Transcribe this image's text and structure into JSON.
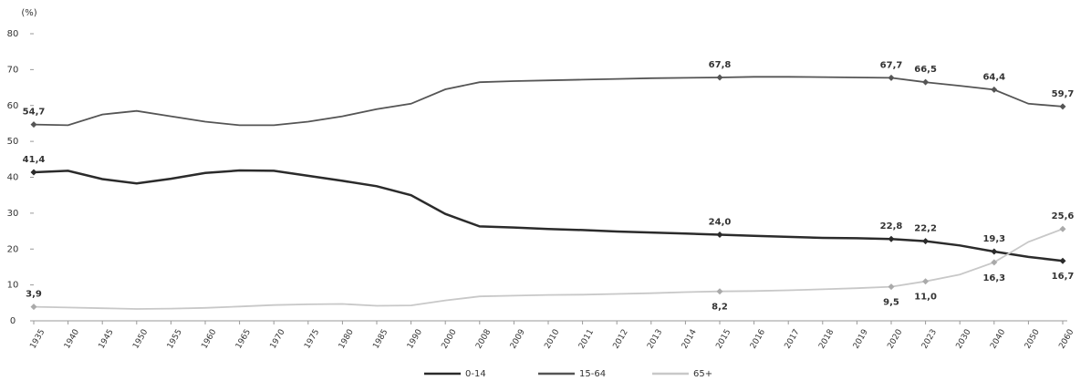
{
  "chart_data": {
    "type": "line",
    "y_axis_label": "(%)",
    "categories": [
      "1935",
      "1940",
      "1945",
      "1950",
      "1955",
      "1960",
      "1965",
      "1970",
      "1975",
      "1980",
      "1985",
      "1990",
      "2000",
      "2008",
      "2009",
      "2010",
      "2011",
      "2012",
      "2013",
      "2014",
      "2015",
      "2016",
      "2017",
      "2018",
      "2019",
      "2020",
      "2023",
      "2030",
      "2040",
      "2050",
      "2060"
    ],
    "series": [
      {
        "name": "0-14",
        "color": "#2b2b2b",
        "values": [
          41.4,
          41.8,
          39.5,
          38.3,
          39.6,
          41.2,
          41.9,
          41.8,
          40.4,
          39.0,
          37.5,
          35.0,
          29.8,
          26.3,
          26.0,
          25.6,
          25.3,
          24.9,
          24.6,
          24.3,
          24.0,
          23.7,
          23.4,
          23.1,
          23.0,
          22.8,
          22.2,
          21.0,
          19.3,
          17.8,
          16.7
        ],
        "value_labels": [
          "41,4",
          null,
          null,
          null,
          null,
          null,
          null,
          null,
          null,
          null,
          null,
          null,
          null,
          null,
          null,
          null,
          null,
          null,
          null,
          null,
          "24,0",
          null,
          null,
          null,
          null,
          "22,8",
          "22,2",
          null,
          "19,3",
          null,
          "16,7"
        ]
      },
      {
        "name": "15-64",
        "color": "#555555",
        "values": [
          54.7,
          54.5,
          57.5,
          58.5,
          57.0,
          55.5,
          54.5,
          54.5,
          55.5,
          57.0,
          59.0,
          60.5,
          64.5,
          66.5,
          66.8,
          67.0,
          67.2,
          67.4,
          67.6,
          67.7,
          67.8,
          68.0,
          68.0,
          67.9,
          67.8,
          67.7,
          66.5,
          65.5,
          64.4,
          60.5,
          59.7
        ],
        "value_labels": [
          "54,7",
          null,
          null,
          null,
          null,
          null,
          null,
          null,
          null,
          null,
          null,
          null,
          null,
          null,
          null,
          null,
          null,
          null,
          null,
          null,
          "67,8",
          null,
          null,
          null,
          null,
          "67,7",
          "66,5",
          null,
          "64,4",
          null,
          "59,7"
        ]
      },
      {
        "name": "65+",
        "color": "#c8c8c8",
        "values": [
          3.9,
          3.7,
          3.5,
          3.3,
          3.4,
          3.6,
          4.0,
          4.4,
          4.6,
          4.7,
          4.2,
          4.3,
          5.7,
          6.8,
          7.0,
          7.2,
          7.3,
          7.5,
          7.7,
          8.0,
          8.2,
          8.3,
          8.5,
          8.8,
          9.1,
          9.5,
          11.0,
          12.9,
          16.3,
          22.0,
          25.6
        ],
        "value_labels": [
          "3,9",
          null,
          null,
          null,
          null,
          null,
          null,
          null,
          null,
          null,
          null,
          null,
          null,
          null,
          null,
          null,
          null,
          null,
          null,
          null,
          "8,2",
          null,
          null,
          null,
          null,
          "9,5",
          "11,0",
          null,
          "16,3",
          null,
          "25,6"
        ]
      }
    ],
    "ylim": [
      0,
      80
    ],
    "yticks": [
      0,
      10,
      20,
      30,
      40,
      50,
      60,
      70,
      80
    ],
    "grid": false
  }
}
